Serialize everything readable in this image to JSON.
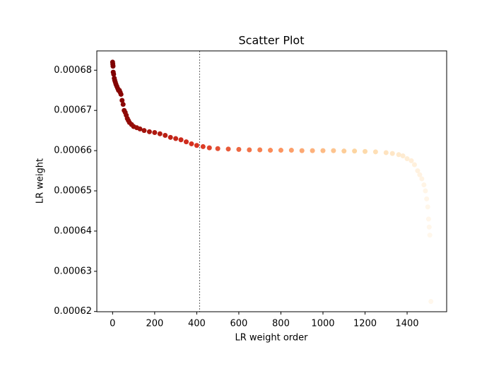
{
  "chart_data": {
    "type": "scatter",
    "title": "Scatter Plot",
    "x_label": "LR weight order",
    "y_label": "LR weight",
    "x": [
      0,
      1,
      2,
      3,
      5,
      8,
      10,
      13,
      16,
      20,
      24,
      28,
      32,
      36,
      40,
      45,
      50,
      55,
      60,
      65,
      70,
      75,
      80,
      90,
      100,
      115,
      130,
      150,
      175,
      200,
      225,
      250,
      275,
      300,
      325,
      350,
      375,
      400,
      430,
      460,
      500,
      550,
      600,
      650,
      700,
      750,
      800,
      850,
      900,
      950,
      1000,
      1050,
      1100,
      1150,
      1200,
      1250,
      1300,
      1330,
      1360,
      1380,
      1400,
      1420,
      1435,
      1450,
      1460,
      1470,
      1480,
      1487,
      1493,
      1498,
      1502,
      1505,
      1508,
      1513
    ],
    "values": [
      0.000682,
      0.0006815,
      0.000681,
      0.0006795,
      0.000679,
      0.000678,
      0.0006775,
      0.000677,
      0.0006765,
      0.000676,
      0.0006755,
      0.000675,
      0.000675,
      0.0006745,
      0.000674,
      0.0006725,
      0.0006715,
      0.00067,
      0.0006695,
      0.0006688,
      0.000668,
      0.0006675,
      0.000667,
      0.0006665,
      0.000666,
      0.0006657,
      0.0006654,
      0.000665,
      0.0006647,
      0.0006645,
      0.0006642,
      0.0006638,
      0.0006633,
      0.000663,
      0.0006627,
      0.0006622,
      0.0006617,
      0.0006613,
      0.000661,
      0.0006607,
      0.0006605,
      0.0006604,
      0.0006603,
      0.0006602,
      0.0006602,
      0.0006601,
      0.0006601,
      0.0006601,
      0.00066,
      0.00066,
      0.00066,
      0.00066,
      0.0006599,
      0.0006599,
      0.0006598,
      0.0006597,
      0.0006595,
      0.0006593,
      0.000659,
      0.0006587,
      0.000658,
      0.0006575,
      0.0006565,
      0.000655,
      0.000654,
      0.000653,
      0.0006515,
      0.00065,
      0.000648,
      0.000646,
      0.000643,
      0.000641,
      0.000639,
      0.0006225
    ],
    "colormap": [
      "#7f0000",
      "#d7301f",
      "#fc8d59",
      "#fdd49e",
      "#fff7ec"
    ],
    "vline": 414,
    "xlim": [
      -75,
      1588
    ],
    "ylim": [
      0.00061995,
      0.0006848
    ],
    "xticks": [
      0,
      200,
      400,
      600,
      800,
      1000,
      1200,
      1400
    ],
    "yticks": [
      0.00062,
      0.00063,
      0.00064,
      0.00065,
      0.00066,
      0.00067,
      0.00068
    ]
  }
}
